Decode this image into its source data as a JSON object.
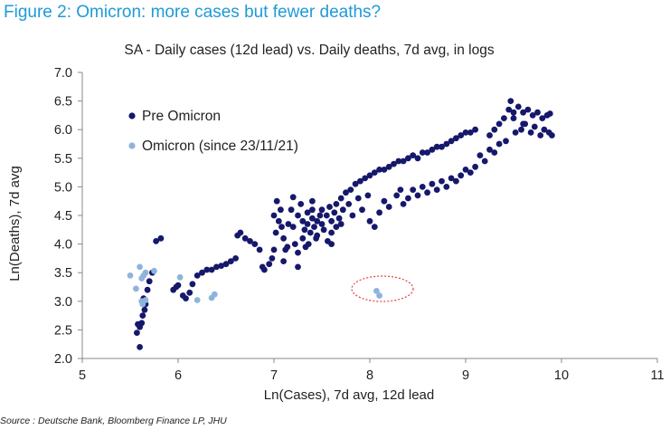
{
  "figure_title": "Figure 2: Omicron: more cases but fewer deaths?",
  "source": "Source : Deutsche Bank, Bloomberg Finance LP, JHU",
  "colors": {
    "title": "#1e9ad6",
    "pre": "#15186b",
    "omicron": "#8fb4dc",
    "highlight": "#e8413c"
  },
  "chart_data": {
    "type": "scatter",
    "title": "SA - Daily cases (12d lead) vs. Daily deaths, 7d avg, in logs",
    "xlabel": "Ln(Cases), 7d avg, 12d lead",
    "ylabel": "Ln(Deaths), 7d avg",
    "xlim": [
      5,
      11
    ],
    "ylim": [
      2.0,
      7.0
    ],
    "xticks": [
      "5",
      "6",
      "7",
      "8",
      "9",
      "10",
      "11"
    ],
    "yticks": [
      "2.0",
      "2.5",
      "3.0",
      "3.5",
      "4.0",
      "4.5",
      "5.0",
      "5.5",
      "6.0",
      "6.5",
      "7.0"
    ],
    "legend": {
      "placement": "top-left"
    },
    "grid": false,
    "annotation": "dashed red ellipse around Omicron points near x=8.1",
    "series": [
      {
        "name": "Pre Omicron",
        "color": "#15186b",
        "points": [
          [
            5.6,
            2.2
          ],
          [
            5.57,
            2.45
          ],
          [
            5.6,
            2.55
          ],
          [
            5.62,
            2.62
          ],
          [
            5.58,
            2.6
          ],
          [
            5.63,
            2.75
          ],
          [
            5.65,
            2.85
          ],
          [
            5.66,
            2.95
          ],
          [
            5.64,
            3.05
          ],
          [
            5.68,
            3.2
          ],
          [
            5.7,
            3.35
          ],
          [
            5.73,
            3.5
          ],
          [
            5.77,
            4.05
          ],
          [
            5.82,
            4.1
          ],
          [
            5.95,
            3.2
          ],
          [
            5.98,
            3.25
          ],
          [
            6.0,
            3.28
          ],
          [
            6.05,
            3.1
          ],
          [
            6.08,
            3.05
          ],
          [
            6.12,
            3.15
          ],
          [
            6.15,
            3.3
          ],
          [
            6.2,
            3.45
          ],
          [
            6.25,
            3.5
          ],
          [
            6.3,
            3.55
          ],
          [
            6.35,
            3.55
          ],
          [
            6.4,
            3.6
          ],
          [
            6.45,
            3.62
          ],
          [
            6.5,
            3.65
          ],
          [
            6.55,
            3.7
          ],
          [
            6.6,
            3.75
          ],
          [
            6.62,
            4.15
          ],
          [
            6.65,
            4.2
          ],
          [
            6.7,
            4.1
          ],
          [
            6.75,
            4.05
          ],
          [
            6.8,
            4.0
          ],
          [
            6.85,
            3.9
          ],
          [
            6.88,
            3.6
          ],
          [
            6.9,
            3.55
          ],
          [
            6.95,
            3.65
          ],
          [
            6.98,
            3.75
          ],
          [
            7.0,
            3.9
          ],
          [
            7.02,
            4.2
          ],
          [
            7.0,
            4.5
          ],
          [
            7.03,
            4.75
          ],
          [
            7.05,
            4.4
          ],
          [
            7.07,
            4.6
          ],
          [
            7.08,
            4.3
          ],
          [
            7.1,
            4.1
          ],
          [
            7.12,
            3.9
          ],
          [
            7.1,
            3.7
          ],
          [
            7.14,
            3.95
          ],
          [
            7.15,
            4.35
          ],
          [
            7.18,
            4.6
          ],
          [
            7.2,
            4.82
          ],
          [
            7.2,
            4.3
          ],
          [
            7.22,
            4.0
          ],
          [
            7.25,
            3.85
          ],
          [
            7.25,
            4.5
          ],
          [
            7.28,
            4.7
          ],
          [
            7.3,
            4.4
          ],
          [
            7.3,
            4.1
          ],
          [
            7.32,
            4.25
          ],
          [
            7.35,
            4.55
          ],
          [
            7.35,
            4.35
          ],
          [
            7.38,
            4.2
          ],
          [
            7.4,
            4.45
          ],
          [
            7.4,
            4.6
          ],
          [
            7.42,
            4.3
          ],
          [
            7.45,
            4.4
          ],
          [
            7.45,
            4.15
          ],
          [
            7.48,
            4.5
          ],
          [
            7.5,
            4.35
          ],
          [
            7.52,
            4.25
          ],
          [
            7.55,
            4.5
          ],
          [
            7.58,
            4.65
          ],
          [
            7.6,
            4.4
          ],
          [
            7.6,
            4.2
          ],
          [
            7.63,
            4.55
          ],
          [
            7.65,
            4.7
          ],
          [
            7.68,
            4.45
          ],
          [
            7.7,
            4.8
          ],
          [
            7.72,
            4.6
          ],
          [
            7.75,
            4.9
          ],
          [
            7.78,
            4.7
          ],
          [
            7.8,
            4.95
          ],
          [
            7.82,
            4.5
          ],
          [
            7.85,
            5.05
          ],
          [
            7.88,
            4.8
          ],
          [
            7.9,
            5.1
          ],
          [
            7.92,
            4.6
          ],
          [
            7.95,
            5.15
          ],
          [
            7.98,
            4.85
          ],
          [
            8.0,
            5.2
          ],
          [
            8.0,
            4.4
          ],
          [
            8.05,
            5.25
          ],
          [
            8.05,
            4.3
          ],
          [
            8.1,
            5.3
          ],
          [
            8.1,
            4.55
          ],
          [
            8.15,
            5.3
          ],
          [
            8.15,
            4.75
          ],
          [
            8.2,
            5.35
          ],
          [
            8.2,
            4.65
          ],
          [
            8.25,
            5.4
          ],
          [
            8.28,
            4.85
          ],
          [
            8.3,
            5.45
          ],
          [
            8.32,
            4.95
          ],
          [
            8.35,
            5.45
          ],
          [
            8.35,
            4.7
          ],
          [
            8.4,
            5.5
          ],
          [
            8.4,
            4.8
          ],
          [
            8.45,
            5.55
          ],
          [
            8.45,
            4.95
          ],
          [
            8.5,
            5.5
          ],
          [
            8.5,
            4.85
          ],
          [
            8.55,
            5.6
          ],
          [
            8.55,
            5.0
          ],
          [
            8.6,
            5.6
          ],
          [
            8.6,
            4.9
          ],
          [
            8.65,
            5.65
          ],
          [
            8.65,
            5.05
          ],
          [
            8.7,
            5.7
          ],
          [
            8.7,
            4.95
          ],
          [
            8.75,
            5.7
          ],
          [
            8.75,
            5.1
          ],
          [
            8.8,
            5.75
          ],
          [
            8.8,
            5.0
          ],
          [
            8.85,
            5.8
          ],
          [
            8.85,
            5.15
          ],
          [
            8.9,
            5.85
          ],
          [
            8.9,
            5.1
          ],
          [
            8.95,
            5.9
          ],
          [
            8.95,
            5.2
          ],
          [
            9.0,
            5.95
          ],
          [
            9.0,
            5.3
          ],
          [
            9.05,
            5.95
          ],
          [
            9.05,
            5.25
          ],
          [
            9.1,
            6.0
          ],
          [
            9.1,
            5.35
          ],
          [
            9.15,
            5.55
          ],
          [
            9.2,
            5.45
          ],
          [
            9.25,
            5.65
          ],
          [
            9.25,
            5.9
          ],
          [
            9.3,
            5.6
          ],
          [
            9.3,
            6.0
          ],
          [
            9.35,
            5.75
          ],
          [
            9.35,
            6.1
          ],
          [
            9.4,
            6.2
          ],
          [
            9.42,
            5.8
          ],
          [
            9.45,
            6.35
          ],
          [
            9.47,
            6.5
          ],
          [
            9.5,
            6.3
          ],
          [
            9.52,
            5.95
          ],
          [
            9.55,
            6.4
          ],
          [
            9.58,
            6.0
          ],
          [
            9.6,
            6.3
          ],
          [
            9.62,
            6.1
          ],
          [
            9.65,
            6.35
          ],
          [
            9.68,
            5.95
          ],
          [
            9.7,
            6.25
          ],
          [
            9.72,
            6.05
          ],
          [
            9.75,
            6.3
          ],
          [
            9.78,
            5.9
          ],
          [
            9.8,
            6.2
          ],
          [
            9.82,
            6.0
          ],
          [
            9.85,
            6.25
          ],
          [
            9.87,
            5.95
          ],
          [
            9.9,
            5.9
          ],
          [
            9.88,
            6.28
          ],
          [
            9.6,
            6.1
          ],
          [
            9.5,
            6.2
          ],
          [
            7.36,
            4.0
          ],
          [
            7.44,
            4.1
          ],
          [
            7.56,
            4.05
          ],
          [
            7.33,
            3.95
          ],
          [
            7.25,
            3.6
          ],
          [
            7.6,
            4.0
          ],
          [
            7.5,
            4.6
          ],
          [
            7.4,
            4.75
          ],
          [
            7.65,
            4.3
          ],
          [
            7.7,
            4.35
          ]
        ]
      },
      {
        "name": "Omicron (since 23/11/21)",
        "color": "#8fb4dc",
        "points": [
          [
            5.5,
            3.45
          ],
          [
            5.56,
            3.22
          ],
          [
            5.6,
            3.6
          ],
          [
            5.62,
            3.4
          ],
          [
            5.64,
            3.45
          ],
          [
            5.66,
            3.5
          ],
          [
            5.63,
            2.95
          ],
          [
            5.66,
            3.02
          ],
          [
            5.62,
            3.0
          ],
          [
            5.75,
            3.53
          ],
          [
            6.02,
            3.42
          ],
          [
            6.2,
            3.02
          ],
          [
            6.35,
            3.06
          ],
          [
            6.38,
            3.12
          ],
          [
            8.07,
            3.18
          ],
          [
            8.1,
            3.1
          ]
        ]
      }
    ]
  }
}
